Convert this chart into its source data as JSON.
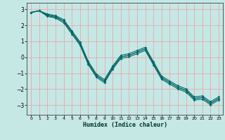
{
  "title": "",
  "xlabel": "Humidex (Indice chaleur)",
  "ylabel": "",
  "xlim": [
    -0.5,
    23.5
  ],
  "ylim": [
    -3.6,
    3.4
  ],
  "xticks": [
    0,
    1,
    2,
    3,
    4,
    5,
    6,
    7,
    8,
    9,
    10,
    11,
    12,
    13,
    14,
    15,
    16,
    17,
    18,
    19,
    20,
    21,
    22,
    23
  ],
  "yticks": [
    -3,
    -2,
    -1,
    0,
    1,
    2,
    3
  ],
  "bg_color": "#c5e8e5",
  "grid_color": "#e8a8a8",
  "line_color": "#006868",
  "lines": [
    [
      2.8,
      2.9,
      2.65,
      2.55,
      2.25,
      1.55,
      0.85,
      -0.35,
      -1.15,
      -1.5,
      -0.65,
      0.02,
      0.12,
      0.32,
      0.52,
      -0.38,
      -1.28,
      -1.58,
      -1.88,
      -2.08,
      -2.58,
      -2.52,
      -2.88,
      -2.58
    ],
    [
      2.8,
      2.9,
      2.55,
      2.45,
      2.15,
      1.45,
      0.75,
      -0.45,
      -1.25,
      -1.6,
      -0.75,
      -0.08,
      0.02,
      0.22,
      0.42,
      -0.48,
      -1.38,
      -1.68,
      -1.98,
      -2.18,
      -2.68,
      -2.62,
      -2.98,
      -2.68
    ],
    [
      2.8,
      2.9,
      2.7,
      2.6,
      2.35,
      1.65,
      0.95,
      -0.25,
      -1.05,
      -1.4,
      -0.55,
      0.12,
      0.22,
      0.42,
      0.62,
      -0.28,
      -1.18,
      -1.48,
      -1.78,
      -1.98,
      -2.48,
      -2.42,
      -2.78,
      -2.48
    ],
    [
      2.8,
      2.9,
      2.6,
      2.5,
      2.25,
      1.55,
      0.85,
      -0.35,
      -1.15,
      -1.5,
      -0.65,
      0.02,
      0.12,
      0.32,
      0.52,
      -0.38,
      -1.28,
      -1.58,
      -1.88,
      -2.08,
      -2.58,
      -2.52,
      -2.88,
      -2.58
    ]
  ]
}
